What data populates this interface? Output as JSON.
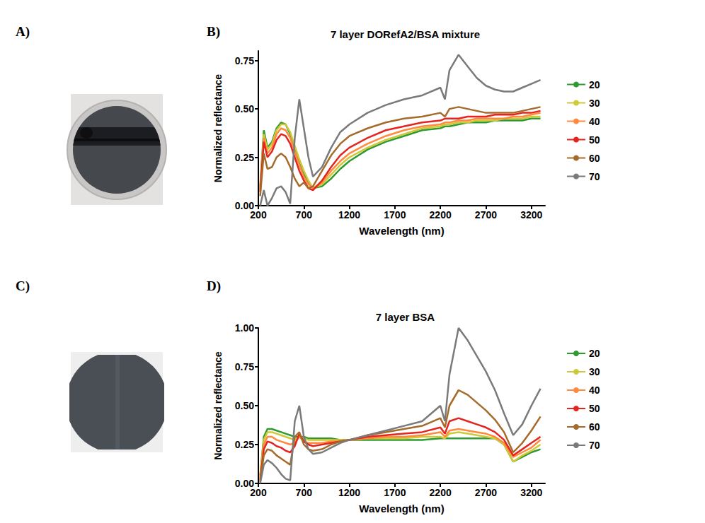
{
  "panel_labels": [
    "A)",
    "B)",
    "C)",
    "D)"
  ],
  "chart_data": [
    {
      "type": "line",
      "title": "7 layer DORefA2/BSA mixture",
      "x_label": "Wavelength (nm)",
      "y_label": "Normalized reflectance",
      "x": [
        220,
        260,
        300,
        350,
        400,
        450,
        500,
        550,
        600,
        650,
        700,
        750,
        800,
        900,
        1000,
        1100,
        1200,
        1400,
        1600,
        1800,
        2000,
        2200,
        2250,
        2300,
        2400,
        2500,
        2600,
        2700,
        2800,
        2900,
        3000,
        3100,
        3200,
        3300
      ],
      "series": [
        {
          "name": "20",
          "color": "#2f9a2f",
          "values": [
            0.1,
            0.39,
            0.3,
            0.33,
            0.4,
            0.43,
            0.42,
            0.37,
            0.3,
            0.23,
            0.17,
            0.12,
            0.09,
            0.1,
            0.14,
            0.19,
            0.23,
            0.29,
            0.33,
            0.36,
            0.39,
            0.4,
            0.41,
            0.41,
            0.42,
            0.43,
            0.43,
            0.43,
            0.44,
            0.44,
            0.44,
            0.44,
            0.45,
            0.45
          ]
        },
        {
          "name": "30",
          "color": "#cfc93a",
          "values": [
            0.09,
            0.37,
            0.29,
            0.32,
            0.39,
            0.42,
            0.42,
            0.38,
            0.31,
            0.24,
            0.18,
            0.13,
            0.09,
            0.11,
            0.16,
            0.21,
            0.25,
            0.3,
            0.34,
            0.37,
            0.4,
            0.41,
            0.42,
            0.42,
            0.43,
            0.43,
            0.44,
            0.44,
            0.44,
            0.45,
            0.45,
            0.45,
            0.46,
            0.46
          ]
        },
        {
          "name": "40",
          "color": "#ff8a3d",
          "values": [
            0.08,
            0.35,
            0.27,
            0.3,
            0.37,
            0.4,
            0.39,
            0.35,
            0.28,
            0.21,
            0.15,
            0.11,
            0.09,
            0.12,
            0.18,
            0.23,
            0.27,
            0.32,
            0.36,
            0.39,
            0.41,
            0.42,
            0.43,
            0.43,
            0.44,
            0.44,
            0.45,
            0.45,
            0.45,
            0.45,
            0.46,
            0.46,
            0.47,
            0.48
          ]
        },
        {
          "name": "50",
          "color": "#e3241f",
          "values": [
            0.07,
            0.33,
            0.25,
            0.28,
            0.34,
            0.37,
            0.36,
            0.32,
            0.25,
            0.18,
            0.13,
            0.09,
            0.08,
            0.13,
            0.2,
            0.26,
            0.3,
            0.35,
            0.39,
            0.41,
            0.43,
            0.44,
            0.45,
            0.45,
            0.45,
            0.46,
            0.46,
            0.46,
            0.47,
            0.47,
            0.47,
            0.48,
            0.48,
            0.49
          ]
        },
        {
          "name": "60",
          "color": "#a56b2a",
          "values": [
            0.05,
            0.27,
            0.19,
            0.2,
            0.25,
            0.27,
            0.25,
            0.2,
            0.14,
            0.1,
            0.12,
            0.09,
            0.1,
            0.18,
            0.26,
            0.32,
            0.36,
            0.4,
            0.43,
            0.45,
            0.46,
            0.48,
            0.46,
            0.5,
            0.51,
            0.5,
            0.49,
            0.48,
            0.48,
            0.48,
            0.48,
            0.49,
            0.5,
            0.51
          ]
        },
        {
          "name": "70",
          "color": "#7a7a7a",
          "values": [
            0.0,
            0.08,
            0.0,
            0.04,
            0.09,
            0.1,
            0.07,
            0.01,
            0.35,
            0.55,
            0.4,
            0.25,
            0.15,
            0.2,
            0.3,
            0.38,
            0.42,
            0.48,
            0.52,
            0.55,
            0.57,
            0.61,
            0.55,
            0.7,
            0.78,
            0.72,
            0.66,
            0.62,
            0.6,
            0.59,
            0.59,
            0.61,
            0.63,
            0.65
          ]
        }
      ],
      "xlim": [
        200,
        3350
      ],
      "xticks": [
        200,
        700,
        1200,
        1700,
        2200,
        2700,
        3200
      ],
      "ylim": [
        0,
        0.8
      ],
      "yticks": [
        {
          "value": 0,
          "label": "0.00"
        },
        {
          "value": 0.25,
          "label": "0.25"
        },
        {
          "value": 0.5,
          "label": "0.50"
        },
        {
          "value": 0.75,
          "label": "0.75"
        }
      ],
      "legend": "right",
      "grid": false
    },
    {
      "type": "line",
      "title": "7 layer BSA",
      "x_label": "Wavelength (nm)",
      "y_label": "Normalized reflectance",
      "x": [
        220,
        260,
        300,
        350,
        400,
        450,
        500,
        550,
        600,
        650,
        700,
        750,
        800,
        900,
        1000,
        1100,
        1200,
        1400,
        1600,
        1800,
        2000,
        2200,
        2250,
        2300,
        2400,
        2500,
        2600,
        2700,
        2800,
        2900,
        3000,
        3100,
        3200,
        3300
      ],
      "series": [
        {
          "name": "20",
          "color": "#2f9a2f",
          "values": [
            0.05,
            0.3,
            0.35,
            0.35,
            0.34,
            0.33,
            0.32,
            0.31,
            0.3,
            0.3,
            0.3,
            0.29,
            0.29,
            0.29,
            0.29,
            0.28,
            0.28,
            0.28,
            0.28,
            0.28,
            0.28,
            0.29,
            0.29,
            0.29,
            0.29,
            0.29,
            0.29,
            0.29,
            0.29,
            0.25,
            0.14,
            0.17,
            0.2,
            0.22
          ]
        },
        {
          "name": "30",
          "color": "#cfc93a",
          "values": [
            0.04,
            0.28,
            0.33,
            0.33,
            0.32,
            0.31,
            0.3,
            0.29,
            0.28,
            0.3,
            0.29,
            0.28,
            0.28,
            0.28,
            0.28,
            0.28,
            0.28,
            0.29,
            0.29,
            0.29,
            0.3,
            0.3,
            0.29,
            0.32,
            0.33,
            0.32,
            0.31,
            0.3,
            0.29,
            0.25,
            0.14,
            0.18,
            0.21,
            0.25
          ]
        },
        {
          "name": "40",
          "color": "#ff8a3d",
          "values": [
            0.03,
            0.25,
            0.3,
            0.3,
            0.28,
            0.27,
            0.26,
            0.25,
            0.26,
            0.3,
            0.27,
            0.26,
            0.26,
            0.26,
            0.27,
            0.27,
            0.28,
            0.29,
            0.3,
            0.3,
            0.31,
            0.33,
            0.3,
            0.34,
            0.35,
            0.34,
            0.33,
            0.32,
            0.3,
            0.26,
            0.17,
            0.2,
            0.23,
            0.28
          ]
        },
        {
          "name": "50",
          "color": "#e3241f",
          "values": [
            0.02,
            0.22,
            0.27,
            0.26,
            0.24,
            0.23,
            0.21,
            0.2,
            0.24,
            0.32,
            0.27,
            0.25,
            0.24,
            0.25,
            0.26,
            0.27,
            0.28,
            0.3,
            0.31,
            0.32,
            0.33,
            0.36,
            0.32,
            0.4,
            0.42,
            0.4,
            0.38,
            0.36,
            0.33,
            0.28,
            0.18,
            0.22,
            0.26,
            0.3
          ]
        },
        {
          "name": "60",
          "color": "#a56b2a",
          "values": [
            0.01,
            0.18,
            0.22,
            0.21,
            0.18,
            0.16,
            0.14,
            0.12,
            0.3,
            0.33,
            0.25,
            0.22,
            0.21,
            0.22,
            0.25,
            0.27,
            0.28,
            0.31,
            0.33,
            0.35,
            0.37,
            0.42,
            0.36,
            0.5,
            0.6,
            0.57,
            0.52,
            0.47,
            0.41,
            0.33,
            0.2,
            0.26,
            0.34,
            0.43
          ]
        },
        {
          "name": "70",
          "color": "#7a7a7a",
          "values": [
            0.0,
            0.12,
            0.15,
            0.13,
            0.1,
            0.06,
            0.03,
            0.02,
            0.4,
            0.5,
            0.3,
            0.22,
            0.19,
            0.2,
            0.23,
            0.26,
            0.28,
            0.31,
            0.34,
            0.37,
            0.4,
            0.5,
            0.4,
            0.7,
            1.0,
            0.92,
            0.82,
            0.72,
            0.6,
            0.45,
            0.31,
            0.38,
            0.5,
            0.61
          ]
        }
      ],
      "xlim": [
        200,
        3350
      ],
      "xticks": [
        200,
        700,
        1200,
        1700,
        2200,
        2700,
        3200
      ],
      "ylim": [
        0,
        1
      ],
      "yticks": [
        {
          "value": 0,
          "label": "0.00"
        },
        {
          "value": 0.25,
          "label": "0.25"
        },
        {
          "value": 0.5,
          "label": "0.50"
        },
        {
          "value": 0.75,
          "label": "0.75"
        },
        {
          "value": 1,
          "label": "1.00"
        }
      ],
      "legend": "right",
      "grid": false
    }
  ]
}
